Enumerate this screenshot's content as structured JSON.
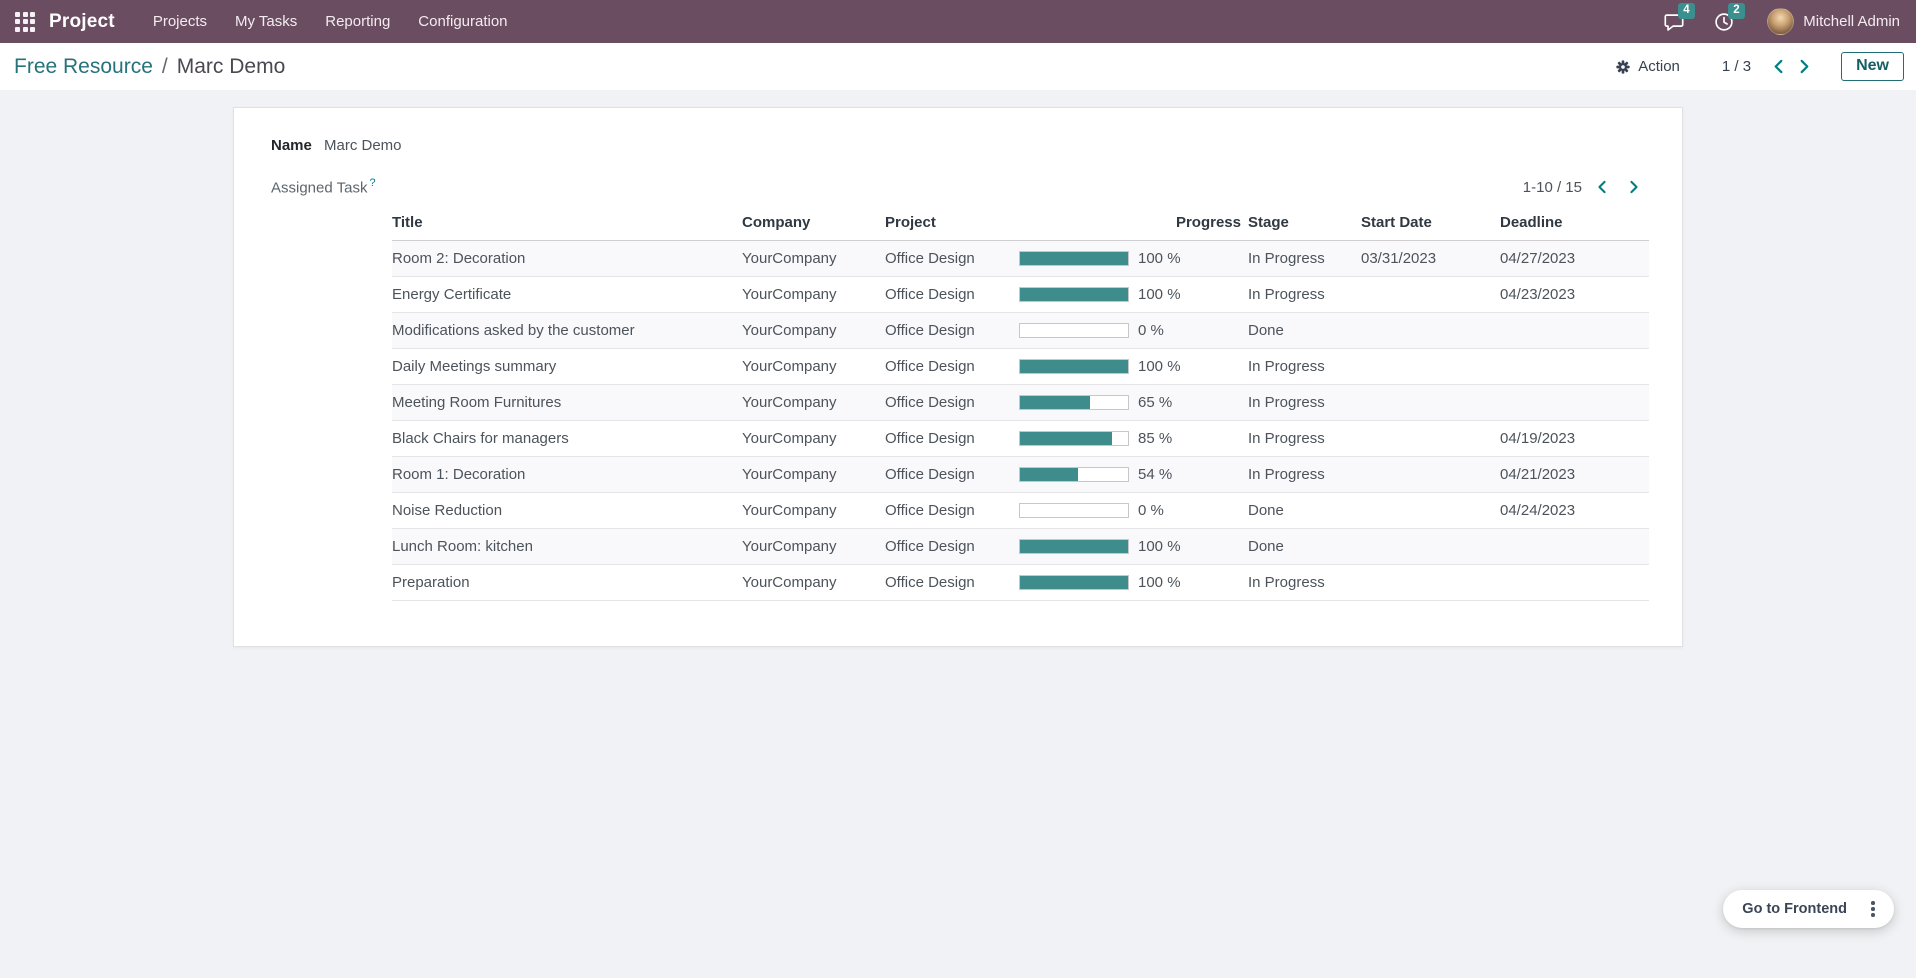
{
  "navbar": {
    "brand": "Project",
    "menus": [
      "Projects",
      "My Tasks",
      "Reporting",
      "Configuration"
    ],
    "messages_count": "4",
    "activities_count": "2",
    "user_name": "Mitchell Admin"
  },
  "control_panel": {
    "breadcrumb_parent": "Free Resource",
    "breadcrumb_separator": "/",
    "breadcrumb_current": "Marc Demo",
    "action_label": "Action",
    "pager": "1 / 3",
    "new_label": "New"
  },
  "form": {
    "name_label": "Name",
    "name_value": "Marc Demo",
    "task_field_label": "Assigned Task",
    "task_field_help": "?",
    "pager": "1-10 / 15"
  },
  "task_list": {
    "columns": [
      "Title",
      "Company",
      "Project",
      "Progress",
      "Stage",
      "Start Date",
      "Deadline"
    ],
    "rows": [
      {
        "title": "Room 2: Decoration",
        "company": "YourCompany",
        "project": "Office Design",
        "progress": 100,
        "progress_label": "100 %",
        "stage": "In Progress",
        "start_date": "03/31/2023",
        "deadline": "04/27/2023"
      },
      {
        "title": "Energy Certificate",
        "company": "YourCompany",
        "project": "Office Design",
        "progress": 100,
        "progress_label": "100 %",
        "stage": "In Progress",
        "start_date": "",
        "deadline": "04/23/2023"
      },
      {
        "title": "Modifications asked by the customer",
        "company": "YourCompany",
        "project": "Office Design",
        "progress": 0,
        "progress_label": "0 %",
        "stage": "Done",
        "start_date": "",
        "deadline": ""
      },
      {
        "title": "Daily Meetings summary",
        "company": "YourCompany",
        "project": "Office Design",
        "progress": 100,
        "progress_label": "100 %",
        "stage": "In Progress",
        "start_date": "",
        "deadline": ""
      },
      {
        "title": "Meeting Room Furnitures",
        "company": "YourCompany",
        "project": "Office Design",
        "progress": 65,
        "progress_label": "65 %",
        "stage": "In Progress",
        "start_date": "",
        "deadline": ""
      },
      {
        "title": "Black Chairs for managers",
        "company": "YourCompany",
        "project": "Office Design",
        "progress": 85,
        "progress_label": "85 %",
        "stage": "In Progress",
        "start_date": "",
        "deadline": "04/19/2023"
      },
      {
        "title": "Room 1: Decoration",
        "company": "YourCompany",
        "project": "Office Design",
        "progress": 54,
        "progress_label": "54 %",
        "stage": "In Progress",
        "start_date": "",
        "deadline": "04/21/2023"
      },
      {
        "title": "Noise Reduction",
        "company": "YourCompany",
        "project": "Office Design",
        "progress": 0,
        "progress_label": "0 %",
        "stage": "Done",
        "start_date": "",
        "deadline": "04/24/2023"
      },
      {
        "title": "Lunch Room: kitchen",
        "company": "YourCompany",
        "project": "Office Design",
        "progress": 100,
        "progress_label": "100 %",
        "stage": "Done",
        "start_date": "",
        "deadline": ""
      },
      {
        "title": "Preparation",
        "company": "YourCompany",
        "project": "Office Design",
        "progress": 100,
        "progress_label": "100 %",
        "stage": "In Progress",
        "start_date": "",
        "deadline": ""
      }
    ]
  },
  "floating": {
    "go_to_frontend_label": "Go to Frontend"
  },
  "colors": {
    "navbar_bg": "#6B4D62",
    "accent_teal": "#017E84",
    "progress_fill": "#3F8C8C",
    "badge_bg": "#3C8F8F"
  }
}
